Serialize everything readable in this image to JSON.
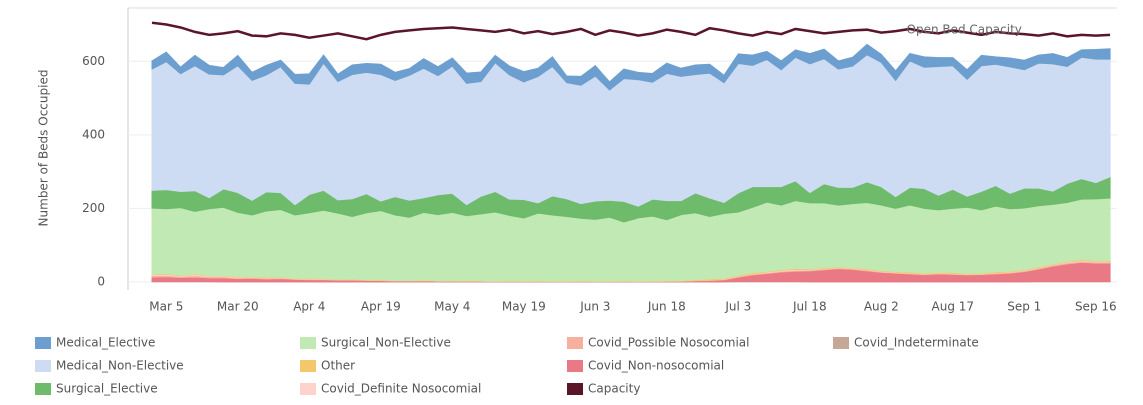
{
  "chart_data": {
    "type": "area",
    "y_label": "Number of Beds Occupied",
    "annotation": "Open Bed Capacity",
    "categories": [
      null,
      "Mar 5",
      null,
      null,
      null,
      null,
      "Mar 20",
      null,
      null,
      null,
      null,
      "Apr 4",
      null,
      null,
      null,
      null,
      "Apr 19",
      null,
      null,
      null,
      null,
      "May 4",
      null,
      null,
      null,
      null,
      "May 19",
      null,
      null,
      null,
      null,
      "Jun 3",
      null,
      null,
      null,
      null,
      "Jun 18",
      null,
      null,
      null,
      null,
      "Jul 3",
      null,
      null,
      null,
      null,
      "Jul 18",
      null,
      null,
      null,
      null,
      "Aug 2",
      null,
      null,
      null,
      null,
      "Aug 17",
      null,
      null,
      null,
      null,
      "Sep 1",
      null,
      null,
      null,
      null,
      "Sep 16",
      null
    ],
    "ylim": [
      -22,
      745
    ],
    "yticks": [
      0,
      200,
      400,
      600
    ],
    "grid": true,
    "series": [
      {
        "name": "Medical_Elective",
        "color": "#6c9fcf",
        "values": [
          22,
          26,
          18,
          28,
          24,
          20,
          28,
          22,
          26,
          18,
          24,
          28,
          22,
          20,
          26,
          24,
          28,
          22,
          18,
          26,
          24,
          22,
          28,
          26,
          20,
          24,
          28,
          22,
          26,
          18,
          24,
          28,
          22,
          26,
          20,
          24,
          28,
          22,
          26,
          24,
          20,
          26,
          28,
          22,
          24,
          20,
          28,
          26,
          22,
          24,
          28,
          22,
          26,
          20,
          28,
          24,
          22,
          26,
          28,
          20,
          24,
          26,
          22,
          28,
          24,
          20,
          26,
          28
        ]
      },
      {
        "name": "Medical_Non-Elective",
        "color": "#cddcf2",
        "values": [
          330,
          348,
          320,
          340,
          336,
          310,
          345,
          326,
          318,
          342,
          330,
          300,
          346,
          322,
          338,
          330,
          344,
          316,
          340,
          352,
          324,
          346,
          330,
          312,
          350,
          338,
          320,
          344,
          352,
          316,
          322,
          340,
          300,
          334,
          344,
          318,
          346,
          338,
          322,
          340,
          326,
          352,
          330,
          346,
          318,
          336,
          350,
          340,
          322,
          330,
          346,
          338,
          316,
          344,
          330,
          350,
          336,
          318,
          342,
          330,
          344,
          322,
          340,
          346,
          318,
          330,
          336,
          320
        ]
      },
      {
        "name": "Surgical_Elective",
        "color": "#6dbb6b",
        "values": [
          48,
          52,
          44,
          56,
          30,
          50,
          54,
          40,
          52,
          46,
          28,
          50,
          54,
          36,
          48,
          52,
          26,
          50,
          46,
          40,
          54,
          52,
          30,
          48,
          56,
          44,
          50,
          28,
          52,
          48,
          40,
          50,
          46,
          56,
          32,
          46,
          52,
          38,
          54,
          50,
          30,
          52,
          56,
          42,
          50,
          54,
          28,
          52,
          48,
          44,
          56,
          50,
          32,
          48,
          54,
          40,
          52,
          30,
          50,
          56,
          42,
          54,
          48,
          36,
          52,
          56,
          44,
          58
        ]
      },
      {
        "name": "Surgical_Non-Elective",
        "color": "#c1e9b4",
        "values": [
          180,
          176,
          184,
          170,
          182,
          186,
          174,
          168,
          180,
          184,
          172,
          178,
          186,
          180,
          170,
          182,
          188,
          178,
          172,
          184,
          180,
          186,
          176,
          182,
          188,
          178,
          172,
          184,
          180,
          176,
          170,
          168,
          174,
          160,
          172,
          176,
          166,
          180,
          182,
          170,
          176,
          172,
          178,
          188,
          176,
          184,
          180,
          176,
          168,
          174,
          180,
          178,
          172,
          182,
          176,
          170,
          174,
          180,
          172,
          178,
          170,
          168,
          166,
          162,
          160,
          164,
          168,
          170
        ]
      },
      {
        "name": "Other",
        "color": "#f4c86a",
        "values": [
          1,
          2,
          1,
          2,
          1,
          1,
          2,
          1,
          2,
          1,
          1,
          2,
          1,
          1,
          2,
          1,
          2,
          1,
          1,
          2,
          1,
          1,
          2,
          1,
          1,
          2,
          1,
          2,
          1,
          1,
          2,
          1,
          1,
          2,
          1,
          2,
          1,
          1,
          2,
          3,
          2,
          2,
          3,
          2,
          2,
          3,
          2,
          3,
          2,
          2,
          3,
          2,
          2,
          3,
          2,
          2,
          3,
          2,
          2,
          3,
          2,
          2,
          3,
          2,
          2,
          3,
          2,
          2
        ]
      },
      {
        "name": "Covid_Definite Nosocomial",
        "color": "#fdd3cc",
        "values": [
          3,
          3,
          2,
          3,
          2,
          2,
          2,
          1,
          1,
          1,
          1,
          1,
          1,
          0,
          0,
          0,
          0,
          0,
          0,
          0,
          0,
          0,
          0,
          0,
          0,
          0,
          0,
          0,
          0,
          0,
          0,
          0,
          0,
          0,
          0,
          0,
          0,
          0,
          0,
          0,
          1,
          1,
          1,
          2,
          2,
          2,
          1,
          1,
          1,
          1,
          1,
          1,
          1,
          1,
          1,
          1,
          1,
          1,
          1,
          1,
          1,
          1,
          1,
          1,
          2,
          2,
          2,
          2
        ]
      },
      {
        "name": "Covid_Possible Nosocomial",
        "color": "#f7b09f",
        "values": [
          4,
          4,
          3,
          4,
          3,
          3,
          2,
          2,
          2,
          2,
          1,
          1,
          1,
          1,
          1,
          1,
          0,
          0,
          0,
          0,
          0,
          0,
          0,
          0,
          0,
          0,
          0,
          0,
          0,
          0,
          0,
          0,
          0,
          0,
          0,
          0,
          0,
          0,
          1,
          1,
          1,
          2,
          2,
          2,
          2,
          3,
          2,
          2,
          2,
          2,
          2,
          2,
          1,
          1,
          1,
          1,
          1,
          1,
          1,
          2,
          2,
          2,
          2,
          3,
          3,
          3,
          3,
          3
        ]
      },
      {
        "name": "Covid_Non-nosocomial",
        "color": "#e87985",
        "values": [
          12,
          13,
          11,
          12,
          10,
          11,
          9,
          10,
          8,
          9,
          7,
          6,
          6,
          5,
          5,
          4,
          4,
          3,
          3,
          3,
          2,
          2,
          2,
          2,
          1,
          1,
          1,
          1,
          1,
          1,
          1,
          1,
          1,
          1,
          1,
          1,
          2,
          2,
          3,
          4,
          6,
          12,
          18,
          22,
          26,
          28,
          30,
          33,
          36,
          34,
          30,
          26,
          24,
          22,
          20,
          22,
          21,
          19,
          20,
          22,
          24,
          28,
          34,
          42,
          48,
          52,
          50,
          50
        ]
      },
      {
        "name": "Capacity",
        "color": "#5a1628",
        "type": "line",
        "values": [
          705,
          700,
          692,
          680,
          672,
          676,
          682,
          670,
          668,
          676,
          672,
          664,
          670,
          676,
          668,
          660,
          672,
          680,
          684,
          688,
          690,
          692,
          688,
          684,
          680,
          686,
          676,
          682,
          674,
          680,
          688,
          672,
          684,
          678,
          670,
          676,
          686,
          680,
          672,
          690,
          684,
          676,
          670,
          680,
          674,
          688,
          682,
          676,
          680,
          684,
          686,
          678,
          682,
          688,
          680,
          676,
          684,
          678,
          672,
          680,
          676,
          674,
          670,
          676,
          668,
          672,
          670,
          672
        ]
      },
      {
        "name": "Covid_Indeterminate",
        "color": "#c5a898",
        "values": [
          1,
          1,
          1,
          1,
          1,
          0,
          0,
          0,
          0,
          0,
          0,
          0,
          0,
          0,
          0,
          0,
          0,
          0,
          0,
          0,
          0,
          0,
          0,
          0,
          0,
          0,
          0,
          0,
          0,
          0,
          0,
          0,
          0,
          0,
          0,
          0,
          0,
          0,
          0,
          0,
          0,
          1,
          1,
          1,
          1,
          1,
          0,
          0,
          0,
          0,
          0,
          0,
          0,
          0,
          0,
          0,
          0,
          0,
          0,
          0,
          0,
          0,
          1,
          1,
          1,
          1,
          1,
          1
        ]
      }
    ]
  }
}
